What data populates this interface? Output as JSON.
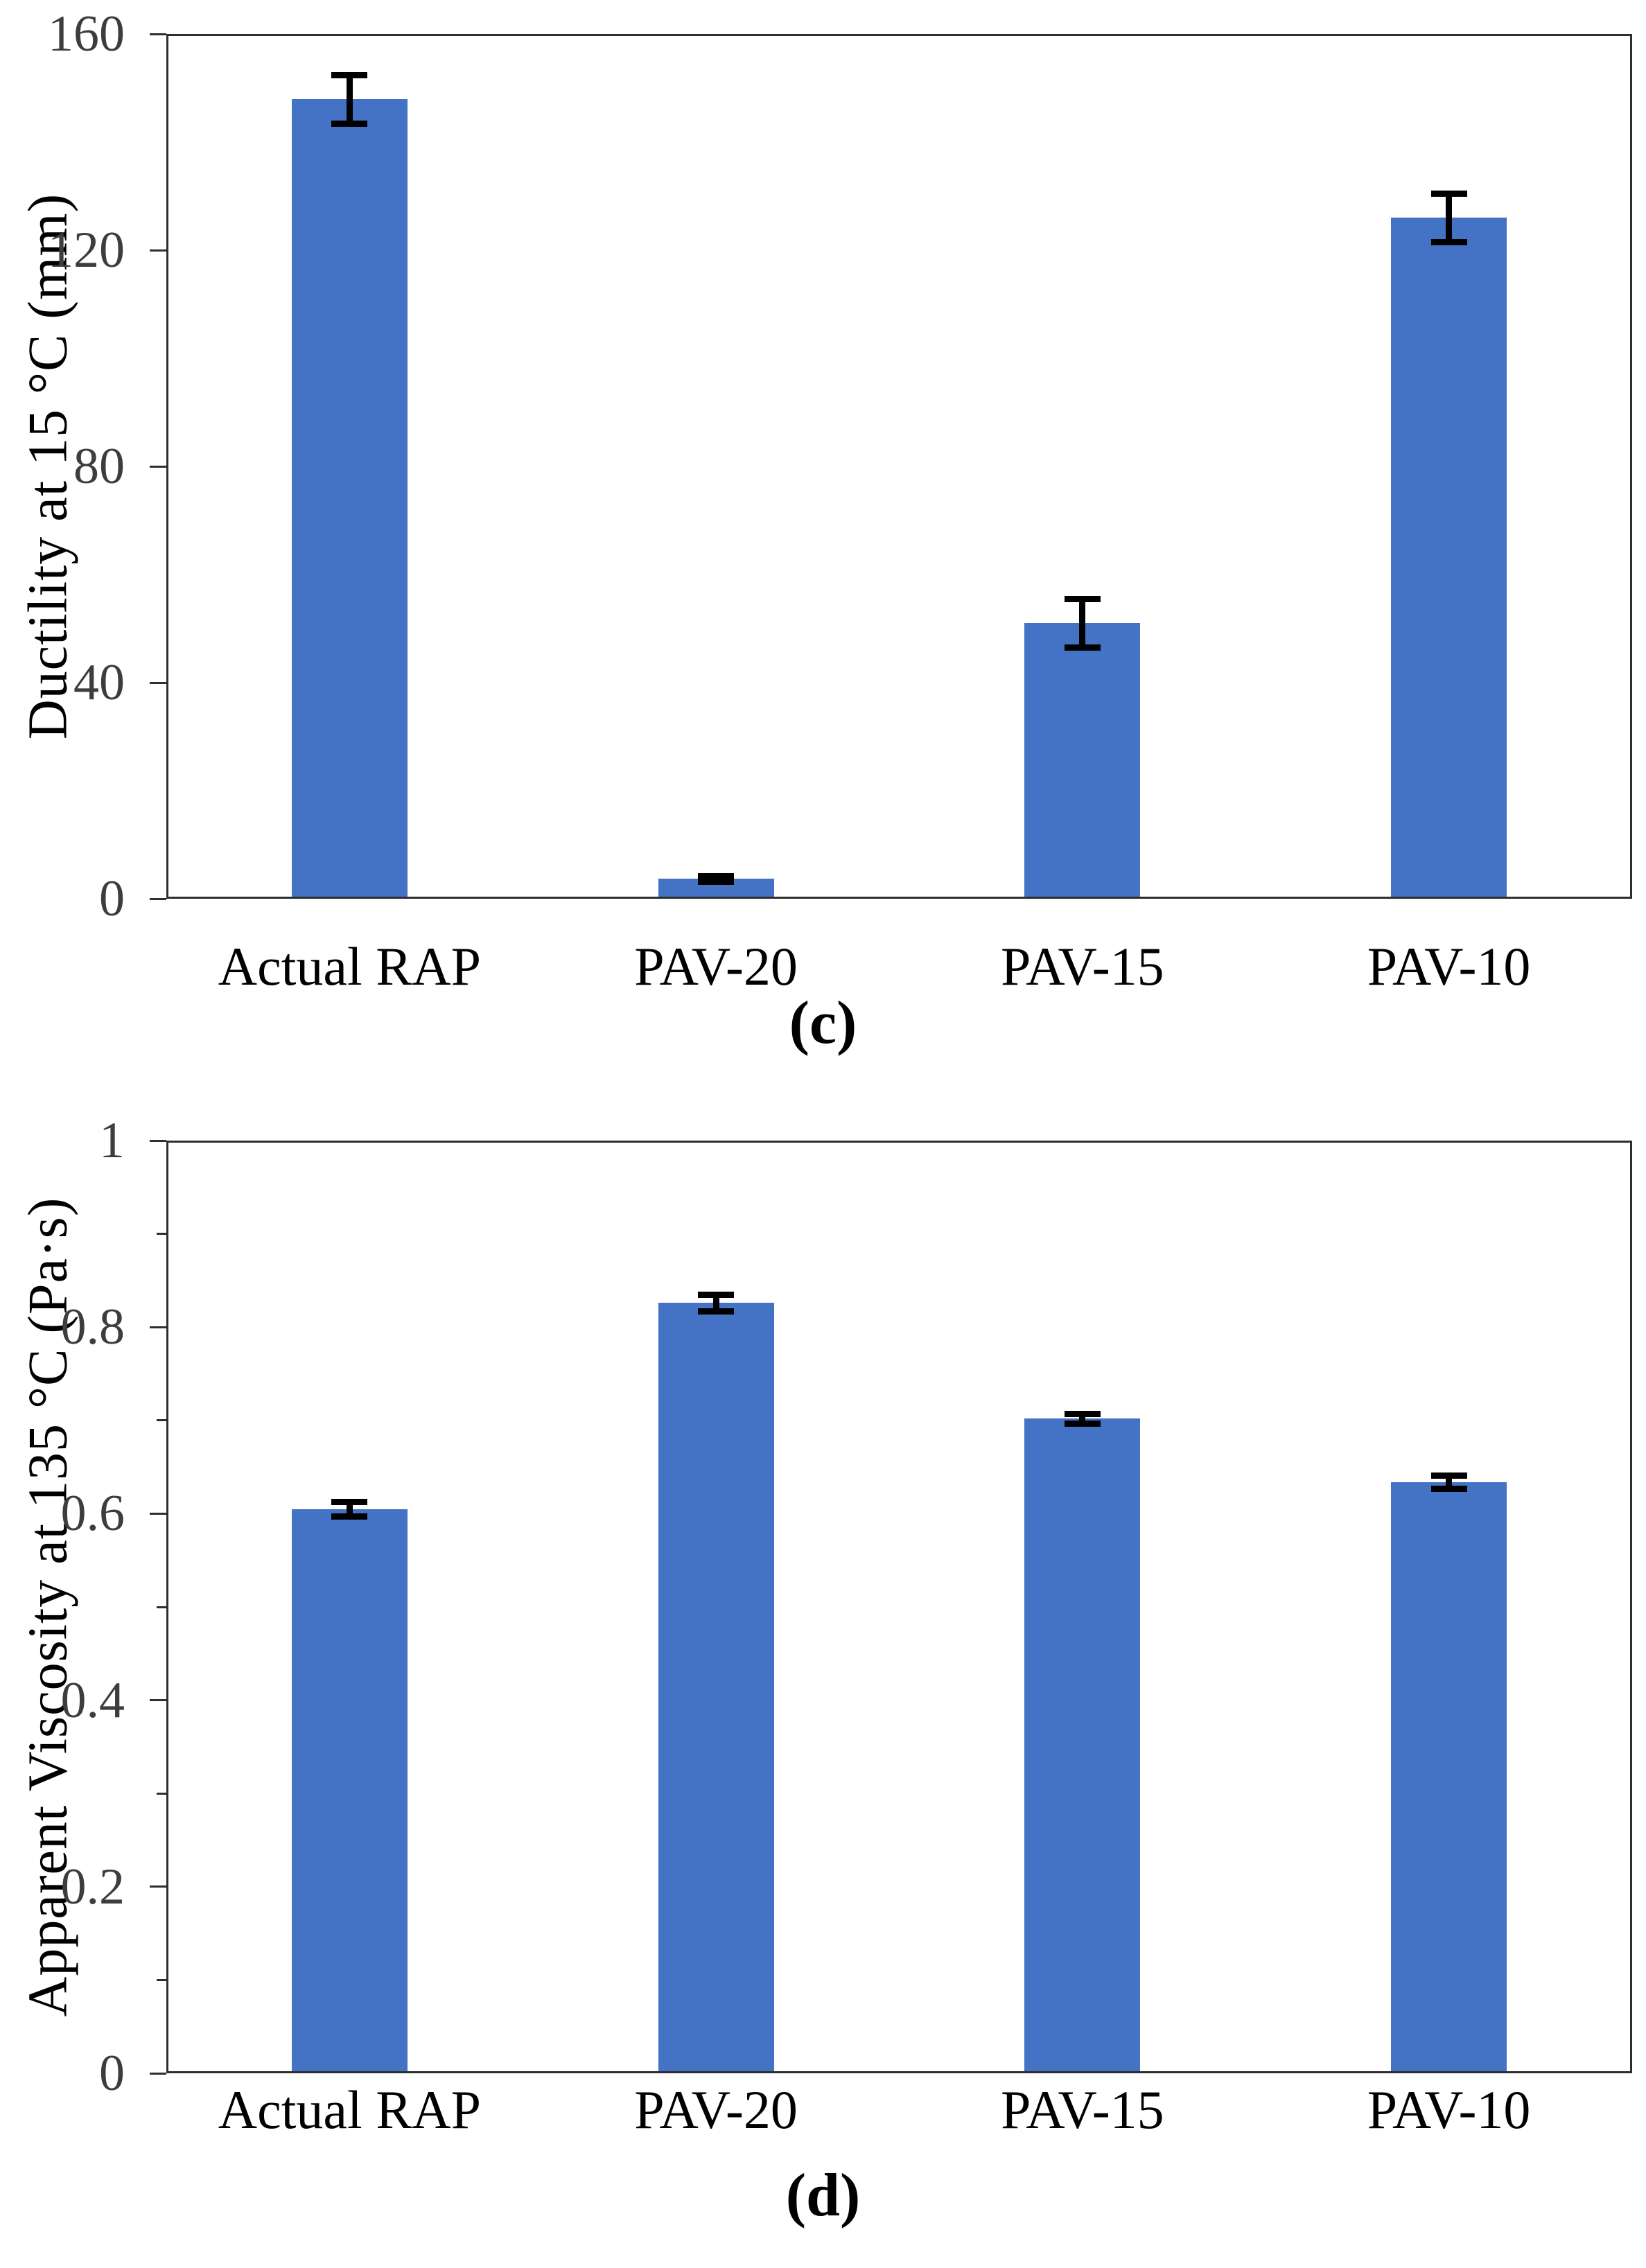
{
  "figure": {
    "panel_captions": [
      "(c)",
      "(d)"
    ],
    "background": "#ffffff"
  },
  "colors": {
    "bar_fill": "#4472C4",
    "error_bar": "#000000",
    "axis_line": "#2e2e2e",
    "tick_label": "#3d3d3d",
    "text": "#000000"
  },
  "chart_data": [
    {
      "type": "bar",
      "panel": "(c)",
      "title": "",
      "xlabel": "",
      "ylabel": "Ductility at 15 °C (mm)",
      "categories": [
        "Actual RAP",
        "PAV-20",
        "PAV-15",
        "PAV-10"
      ],
      "values": [
        148,
        3.7,
        51,
        126
      ],
      "errors": [
        4.5,
        0.5,
        4.5,
        4.5
      ],
      "ylim": [
        0,
        160
      ],
      "yticks": [
        0,
        40,
        80,
        120,
        160
      ],
      "ytick_labels": [
        "0",
        "40",
        "80",
        "120",
        "160"
      ],
      "minor_yticks": [],
      "grid": false,
      "legend": false,
      "bar_color": "#4472C4",
      "error_bars": true
    },
    {
      "type": "bar",
      "panel": "(d)",
      "title": "",
      "xlabel": "",
      "ylabel": "Apparent Viscosity at 135 °C (Pa·s)",
      "categories": [
        "Actual RAP",
        "PAV-20",
        "PAV-15",
        "PAV-10"
      ],
      "values": [
        0.605,
        0.826,
        0.702,
        0.634
      ],
      "errors": [
        0.008,
        0.009,
        0.005,
        0.007
      ],
      "ylim": [
        0,
        1
      ],
      "yticks": [
        0,
        0.2,
        0.4,
        0.6,
        0.8,
        1
      ],
      "ytick_labels": [
        "0",
        "0.2",
        "0.4",
        "0.6",
        "0.8",
        "1"
      ],
      "minor_yticks": [
        0.1,
        0.3,
        0.5,
        0.7,
        0.9
      ],
      "grid": false,
      "legend": false,
      "bar_color": "#4472C4",
      "error_bars": true
    }
  ]
}
